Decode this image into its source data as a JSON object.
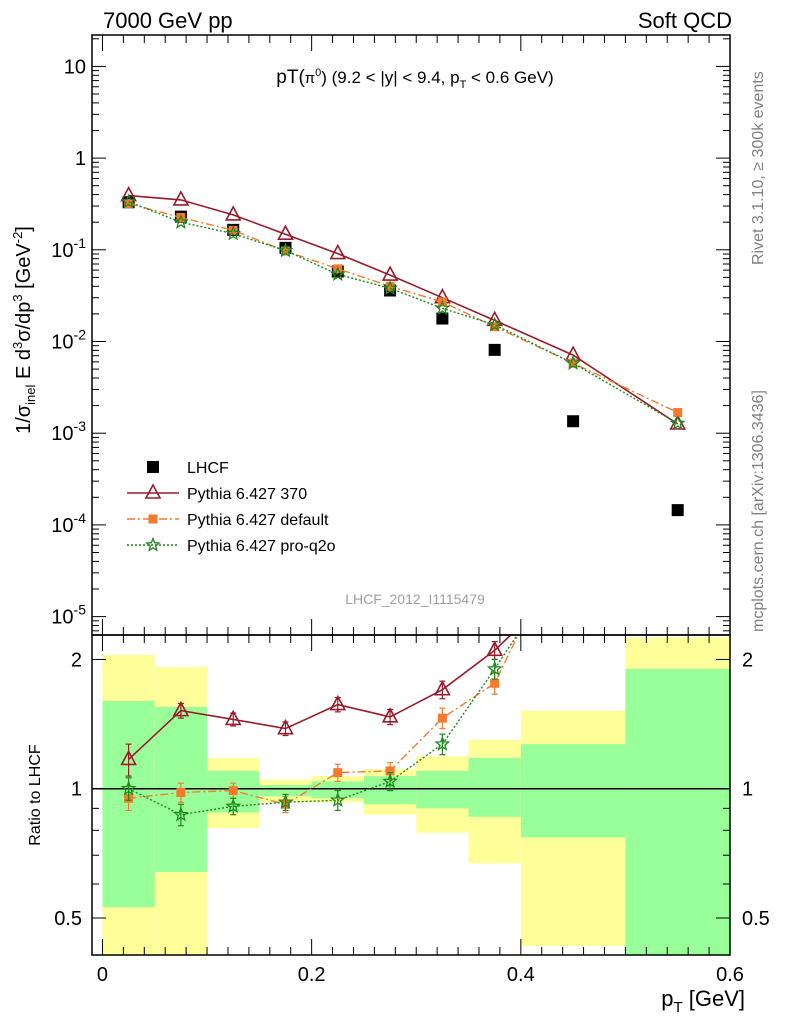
{
  "header": {
    "left": "7000 GeV pp",
    "right": "Soft QCD"
  },
  "side_text": {
    "upper": "Rivet 3.1.10, ≥ 300k events",
    "lower": "mcplots.cern.ch [arXiv:1306.3436]"
  },
  "watermark": "LHCF_2012_I1115479",
  "colors": {
    "lhcf": "#000000",
    "p370": "#9a1b2a",
    "pdefault": "#f47a30",
    "pq2o": "#1a8a1a",
    "band_inner": "#99ff99",
    "band_outer": "#ffff99"
  },
  "chart_data": [
    {
      "type": "scatter",
      "title": "pT(π⁰) (9.2 < |y| < 9.4, pT < 0.6 GeV)",
      "title_parts": {
        "a": "pT(",
        "b": "π",
        "c": "0",
        "d": ") (9.2 < |y| < 9.4, p",
        "e": "T",
        "f": " < 0.6 GeV)"
      },
      "ylabel": "1/σinel E d³σ/dp³ [GeV⁻²]",
      "ylabel_parts": {
        "a": "1/σ",
        "b": "inel",
        "c": " E d",
        "d": "3",
        "e": "σ/dp",
        "f": "3",
        "g": " [GeV",
        "h": "-2",
        "i": "]"
      },
      "yscale": "log",
      "ylim": [
        6.3e-06,
        22
      ],
      "xlim": [
        -0.01,
        0.6
      ],
      "yticks": [
        {
          "v": 10,
          "base": "10",
          "exp": ""
        },
        {
          "v": 1,
          "base": "1",
          "exp": ""
        },
        {
          "v": 0.1,
          "base": "10",
          "exp": "-1"
        },
        {
          "v": 0.01,
          "base": "10",
          "exp": "-2"
        },
        {
          "v": 0.001,
          "base": "10",
          "exp": "-3"
        },
        {
          "v": 0.0001,
          "base": "10",
          "exp": "-4"
        },
        {
          "v": 1e-05,
          "base": "10",
          "exp": "-5"
        }
      ],
      "legend_position": "lower-left",
      "series": [
        {
          "name": "LHCF",
          "key": "lhcf",
          "marker": "square",
          "x": [
            0.025,
            0.075,
            0.125,
            0.175,
            0.225,
            0.275,
            0.325,
            0.375,
            0.45,
            0.55
          ],
          "y": [
            0.33,
            0.23,
            0.165,
            0.105,
            0.058,
            0.036,
            0.0178,
            0.0081,
            0.00135,
            0.000145
          ]
        },
        {
          "name": "Pythia 6.427 370",
          "key": "p370",
          "marker": "triangle",
          "x": [
            0.025,
            0.075,
            0.125,
            0.175,
            0.225,
            0.275,
            0.325,
            0.375,
            0.45,
            0.55
          ],
          "y": [
            0.39,
            0.35,
            0.24,
            0.148,
            0.091,
            0.053,
            0.03,
            0.017,
            0.0071,
            0.00126
          ]
        },
        {
          "name": "Pythia 6.427 default",
          "key": "pdefault",
          "marker": "filled-square",
          "x": [
            0.025,
            0.075,
            0.125,
            0.175,
            0.225,
            0.275,
            0.325,
            0.375,
            0.45,
            0.55
          ],
          "y": [
            0.32,
            0.225,
            0.163,
            0.097,
            0.062,
            0.04,
            0.027,
            0.0145,
            0.0058,
            0.00168
          ]
        },
        {
          "name": "Pythia 6.427 pro-q2o",
          "key": "pq2o",
          "marker": "star",
          "x": [
            0.025,
            0.075,
            0.125,
            0.175,
            0.225,
            0.275,
            0.325,
            0.375,
            0.45,
            0.55
          ],
          "y": [
            0.335,
            0.2,
            0.15,
            0.098,
            0.054,
            0.038,
            0.023,
            0.0152,
            0.0058,
            0.00128
          ]
        }
      ]
    },
    {
      "type": "line",
      "xlabel": "pT [GeV]",
      "xlabel_parts": {
        "a": "p",
        "b": "T",
        "c": " [GeV]"
      },
      "ylabel": "Ratio to LHCF",
      "yscale": "log",
      "ylim": [
        0.41,
        2.28
      ],
      "xlim": [
        -0.01,
        0.6
      ],
      "xticks": [
        0,
        0.2,
        0.4,
        0.6
      ],
      "xticklabels": [
        "0",
        "0.2",
        "0.4",
        "0.6"
      ],
      "yticks": [
        0.5,
        1,
        2
      ],
      "yticklabels": [
        "0.5",
        "1",
        "2"
      ],
      "bands": [
        {
          "x0": 0.0,
          "x1": 0.05,
          "inner": [
            0.53,
            1.6
          ],
          "outer": [
            0.41,
            2.05
          ]
        },
        {
          "x0": 0.05,
          "x1": 0.1,
          "inner": [
            0.64,
            1.55
          ],
          "outer": [
            0.41,
            1.92
          ]
        },
        {
          "x0": 0.1,
          "x1": 0.15,
          "inner": [
            0.88,
            1.1
          ],
          "outer": [
            0.81,
            1.18
          ]
        },
        {
          "x0": 0.15,
          "x1": 0.2,
          "inner": [
            0.96,
            1.02
          ],
          "outer": [
            0.93,
            1.05
          ]
        },
        {
          "x0": 0.2,
          "x1": 0.25,
          "inner": [
            0.95,
            1.04
          ],
          "outer": [
            0.93,
            1.07
          ]
        },
        {
          "x0": 0.25,
          "x1": 0.3,
          "inner": [
            0.92,
            1.07
          ],
          "outer": [
            0.87,
            1.11
          ]
        },
        {
          "x0": 0.3,
          "x1": 0.35,
          "inner": [
            0.9,
            1.1
          ],
          "outer": [
            0.79,
            1.19
          ]
        },
        {
          "x0": 0.35,
          "x1": 0.4,
          "inner": [
            0.86,
            1.18
          ],
          "outer": [
            0.67,
            1.3
          ]
        },
        {
          "x0": 0.4,
          "x1": 0.5,
          "inner": [
            0.77,
            1.27
          ],
          "outer": [
            0.43,
            1.52
          ]
        },
        {
          "x0": 0.5,
          "x1": 0.6,
          "inner": [
            0.41,
            1.9
          ],
          "outer": [
            0.41,
            2.25
          ]
        }
      ],
      "series": [
        {
          "name": "Pythia 6.427 370",
          "key": "p370",
          "marker": "triangle",
          "x": [
            0.025,
            0.075,
            0.125,
            0.175,
            0.225,
            0.275,
            0.325,
            0.375,
            0.4
          ],
          "y": [
            1.17,
            1.52,
            1.45,
            1.38,
            1.57,
            1.47,
            1.7,
            2.1,
            2.4
          ],
          "err": [
            0.1,
            0.06,
            0.05,
            0.05,
            0.06,
            0.06,
            0.08,
            0.1,
            0
          ]
        },
        {
          "name": "Pythia 6.427 default",
          "key": "pdefault",
          "marker": "filled-square",
          "x": [
            0.025,
            0.075,
            0.125,
            0.175,
            0.225,
            0.275,
            0.325,
            0.375,
            0.4
          ],
          "y": [
            0.95,
            0.98,
            0.99,
            0.92,
            1.09,
            1.1,
            1.46,
            1.76,
            2.35
          ],
          "err": [
            0.06,
            0.05,
            0.04,
            0.04,
            0.05,
            0.05,
            0.08,
            0.1,
            0
          ]
        },
        {
          "name": "Pythia 6.427 pro-q2o",
          "key": "pq2o",
          "marker": "star",
          "x": [
            0.025,
            0.075,
            0.125,
            0.175,
            0.225,
            0.275,
            0.325,
            0.375,
            0.4
          ],
          "y": [
            1.0,
            0.87,
            0.91,
            0.93,
            0.94,
            1.04,
            1.27,
            1.9,
            2.35
          ],
          "err": [
            0.06,
            0.05,
            0.04,
            0.04,
            0.05,
            0.05,
            0.07,
            0.1,
            0
          ]
        }
      ]
    }
  ]
}
